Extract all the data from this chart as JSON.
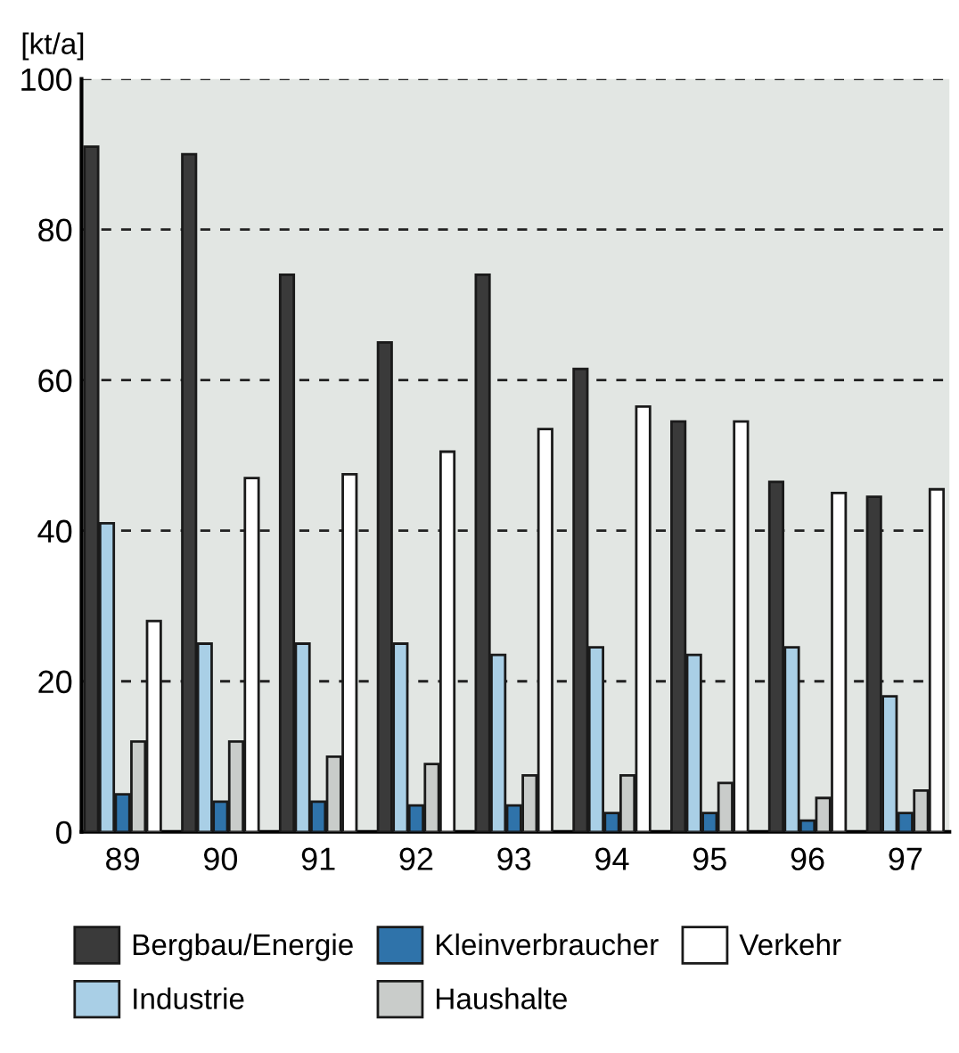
{
  "chart_data": {
    "type": "bar",
    "ylabel": "[kt/a]",
    "categories": [
      "89",
      "90",
      "91",
      "92",
      "93",
      "94",
      "95",
      "96",
      "97"
    ],
    "series": [
      {
        "name": "Bergbau/Energie",
        "color": "#3a3a3a",
        "values": [
          91,
          90,
          74,
          65,
          74,
          61.5,
          54.5,
          46.5,
          44.5
        ]
      },
      {
        "name": "Industrie",
        "color": "#a9cfe6",
        "values": [
          41,
          25,
          25,
          25,
          23.5,
          24.5,
          23.5,
          24.5,
          18
        ]
      },
      {
        "name": "Kleinverbraucher",
        "color": "#2f73aa",
        "values": [
          5,
          4,
          4,
          3.5,
          3.5,
          2.5,
          2.5,
          1.5,
          2.5
        ]
      },
      {
        "name": "Haushalte",
        "color": "#c9ccca",
        "values": [
          12,
          12,
          10,
          9,
          7.5,
          7.5,
          6.5,
          4.5,
          5.5
        ]
      },
      {
        "name": "Verkehr",
        "color": "#ffffff",
        "values": [
          28,
          47,
          47.5,
          50.5,
          53.5,
          56.5,
          54.5,
          45,
          45.5
        ]
      }
    ],
    "ylim": [
      0,
      100
    ],
    "yticks": [
      0,
      20,
      40,
      60,
      80,
      100
    ],
    "grid": "y",
    "legend": "bottom"
  }
}
